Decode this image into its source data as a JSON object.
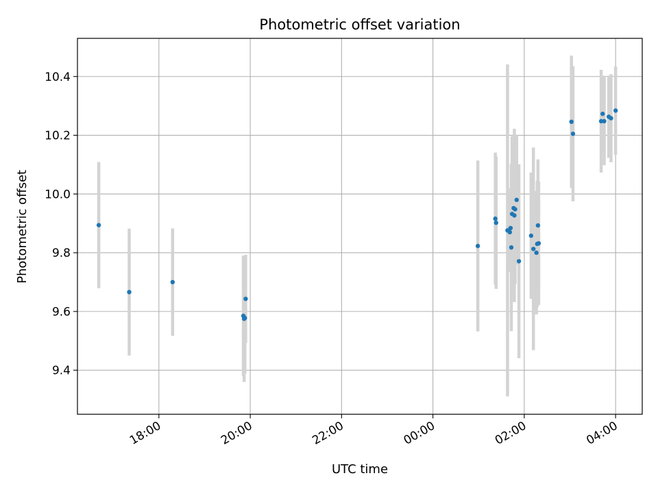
{
  "chart_data": {
    "type": "scatter",
    "title": "Photometric offset variation",
    "xlabel": "UTC time",
    "ylabel": "Photometric offset",
    "x_axis_type": "time",
    "xlim": [
      "16:13",
      "04:35 (+1 day)"
    ],
    "ylim": [
      9.25,
      10.53
    ],
    "grid": true,
    "legend": "none",
    "x_ticks": [
      {
        "time": "18:00",
        "label": "18:00"
      },
      {
        "time": "20:00",
        "label": "20:00"
      },
      {
        "time": "22:00",
        "label": "22:00"
      },
      {
        "time": "00:00 (+1 day)",
        "label": "00:00"
      },
      {
        "time": "02:00 (+1 day)",
        "label": "02:00"
      },
      {
        "time": "04:00 (+1 day)",
        "label": "04:00"
      }
    ],
    "y_ticks": [
      {
        "value": 9.4,
        "label": "9.4"
      },
      {
        "value": 9.6,
        "label": "9.6"
      },
      {
        "value": 9.8,
        "label": "9.8"
      },
      {
        "value": 10.0,
        "label": "10.0"
      },
      {
        "value": 10.2,
        "label": "10.2"
      },
      {
        "value": 10.4,
        "label": "10.4"
      }
    ],
    "colors": {
      "point": "#1f77b4",
      "errorbar": "#d3d3d3",
      "grid": "#b0b0b0",
      "axes": "#000000"
    },
    "points": [
      {
        "time": "16:41",
        "y": 9.894,
        "yerr": 0.215
      },
      {
        "time": "17:21",
        "y": 9.666,
        "yerr": 0.216
      },
      {
        "time": "18:18",
        "y": 9.7,
        "yerr": 0.183
      },
      {
        "time": "19:51",
        "y": 9.585,
        "yerr": 0.205
      },
      {
        "time": "19:52",
        "y": 9.575,
        "yerr": 0.215
      },
      {
        "time": "19:53",
        "y": 9.578,
        "yerr": 0.19
      },
      {
        "time": "19:54",
        "y": 9.643,
        "yerr": 0.15
      },
      {
        "time": "00:59 (+1 day)",
        "y": 9.823,
        "yerr": 0.291
      },
      {
        "time": "01:22 (+1 day)",
        "y": 9.916,
        "yerr": 0.225
      },
      {
        "time": "01:23 (+1 day)",
        "y": 9.902,
        "yerr": 0.225
      },
      {
        "time": "01:38 (+1 day)",
        "y": 9.876,
        "yerr": 0.565
      },
      {
        "time": "01:41 (+1 day)",
        "y": 9.87,
        "yerr": 0.135
      },
      {
        "time": "01:42 (+1 day)",
        "y": 9.884,
        "yerr": 0.135
      },
      {
        "time": "01:43 (+1 day)",
        "y": 9.818,
        "yerr": 0.285
      },
      {
        "time": "01:44 (+1 day)",
        "y": 9.932,
        "yerr": 0.265
      },
      {
        "time": "01:46 (+1 day)",
        "y": 9.952,
        "yerr": 0.245
      },
      {
        "time": "01:47 (+1 day)",
        "y": 9.927,
        "yerr": 0.295
      },
      {
        "time": "01:48 (+1 day)",
        "y": 9.948,
        "yerr": 0.255
      },
      {
        "time": "01:50 (+1 day)",
        "y": 9.98,
        "yerr": 0.22
      },
      {
        "time": "01:53 (+1 day)",
        "y": 9.771,
        "yerr": 0.33
      },
      {
        "time": "02:09 (+1 day)",
        "y": 9.858,
        "yerr": 0.215
      },
      {
        "time": "02:12 (+1 day)",
        "y": 9.813,
        "yerr": 0.345
      },
      {
        "time": "02:16 (+1 day)",
        "y": 9.8,
        "yerr": 0.21
      },
      {
        "time": "02:17 (+1 day)",
        "y": 9.83,
        "yerr": 0.215
      },
      {
        "time": "02:18 (+1 day)",
        "y": 9.893,
        "yerr": 0.225
      },
      {
        "time": "02:19 (+1 day)",
        "y": 9.832,
        "yerr": 0.21
      },
      {
        "time": "03:02 (+1 day)",
        "y": 10.246,
        "yerr": 0.225
      },
      {
        "time": "03:04 (+1 day)",
        "y": 10.205,
        "yerr": 0.23
      },
      {
        "time": "03:41 (+1 day)",
        "y": 10.248,
        "yerr": 0.175
      },
      {
        "time": "03:43 (+1 day)",
        "y": 10.273,
        "yerr": 0.13
      },
      {
        "time": "03:45 (+1 day)",
        "y": 10.248,
        "yerr": 0.15
      },
      {
        "time": "03:51 (+1 day)",
        "y": 10.263,
        "yerr": 0.14
      },
      {
        "time": "03:54 (+1 day)",
        "y": 10.258,
        "yerr": 0.15
      },
      {
        "time": "04:00 (+1 day)",
        "y": 10.284,
        "yerr": 0.15
      }
    ]
  }
}
